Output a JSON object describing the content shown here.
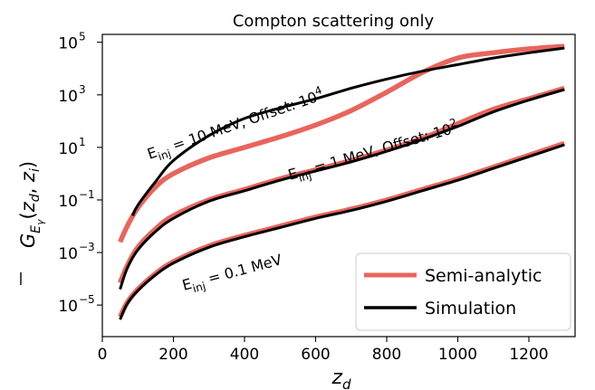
{
  "chart_data": {
    "type": "line",
    "title": "Compton scattering only",
    "xlabel": "z_d",
    "ylabel": "G_Eγ(z_d, z_i)",
    "xlim": [
      0,
      1330
    ],
    "ylim_log10": [
      -6.2,
      5.3
    ],
    "y_scale": "log",
    "x_ticks": [
      0,
      200,
      400,
      600,
      800,
      1000,
      1200
    ],
    "x_tick_labels": [
      "0",
      "200",
      "400",
      "600",
      "800",
      "1000",
      "1200"
    ],
    "y_ticks_log10": [
      -5,
      -3,
      -1,
      1,
      3,
      5
    ],
    "y_tick_labels": [
      "10^-5",
      "10^-3",
      "10^-1",
      "10^1",
      "10^3",
      "10^5"
    ],
    "grid": false,
    "legend_position": "bottom-right",
    "legend": [
      {
        "label": "Semi-analytic",
        "color": "#e8655d"
      },
      {
        "label": "Simulation",
        "color": "#000000"
      }
    ],
    "annotations": [
      {
        "base": "E",
        "sub": "inj",
        "rest": " = 10 MeV, Offset: 10",
        "sup": "4"
      },
      {
        "base": "E",
        "sub": "inj",
        "rest": " = 1 MeV, Offset: 10",
        "sup": "2"
      },
      {
        "base": "E",
        "sub": "inj",
        "rest": " = 0.1 MeV",
        "sup": ""
      }
    ],
    "series": [
      {
        "group": "10 MeV",
        "kind": "Semi-analytic",
        "color": "#e8655d",
        "x": [
          50,
          70,
          100,
          150,
          200,
          300,
          400,
          500,
          600,
          700,
          800,
          900,
          1000,
          1100,
          1200,
          1300
        ],
        "log10y": [
          -2.6,
          -2.0,
          -1.3,
          -0.5,
          0.0,
          0.6,
          1.0,
          1.4,
          1.85,
          2.4,
          3.1,
          3.85,
          4.4,
          4.6,
          4.75,
          4.85
        ]
      },
      {
        "group": "10 MeV",
        "kind": "Simulation",
        "color": "#000000",
        "x": [
          85,
          100,
          150,
          200,
          300,
          400,
          500,
          600,
          700,
          800,
          900,
          1000,
          1100,
          1200,
          1300
        ],
        "log10y": [
          -1.6,
          -1.2,
          -0.3,
          0.5,
          1.45,
          2.1,
          2.5,
          2.85,
          3.25,
          3.6,
          3.9,
          4.15,
          4.4,
          4.6,
          4.78
        ]
      },
      {
        "group": "1 MeV",
        "kind": "Semi-analytic",
        "color": "#e8655d",
        "x": [
          50,
          70,
          100,
          150,
          200,
          300,
          400,
          500,
          600,
          700,
          800,
          900,
          1000,
          1100,
          1200,
          1300
        ],
        "log10y": [
          -4.15,
          -3.5,
          -2.8,
          -2.1,
          -1.6,
          -1.0,
          -0.6,
          -0.2,
          0.15,
          0.5,
          0.9,
          1.35,
          1.9,
          2.45,
          2.85,
          3.25
        ]
      },
      {
        "group": "1 MeV",
        "kind": "Simulation",
        "color": "#000000",
        "x": [
          50,
          70,
          100,
          150,
          200,
          300,
          400,
          500,
          600,
          700,
          800,
          900,
          1000,
          1100,
          1200,
          1300
        ],
        "log10y": [
          -4.4,
          -3.6,
          -2.9,
          -2.2,
          -1.7,
          -1.05,
          -0.65,
          -0.25,
          0.1,
          0.45,
          0.85,
          1.3,
          1.8,
          2.35,
          2.8,
          3.2
        ]
      },
      {
        "group": "0.1 MeV",
        "kind": "Semi-analytic",
        "color": "#e8655d",
        "x": [
          50,
          70,
          100,
          150,
          200,
          300,
          400,
          500,
          600,
          700,
          800,
          900,
          1000,
          1100,
          1200,
          1300
        ],
        "log10y": [
          -5.45,
          -4.9,
          -4.4,
          -3.8,
          -3.35,
          -2.75,
          -2.35,
          -2.0,
          -1.65,
          -1.35,
          -1.0,
          -0.6,
          -0.2,
          0.25,
          0.7,
          1.15
        ]
      },
      {
        "group": "0.1 MeV",
        "kind": "Simulation",
        "color": "#000000",
        "x": [
          50,
          70,
          100,
          150,
          200,
          300,
          400,
          500,
          600,
          700,
          800,
          900,
          1000,
          1100,
          1200,
          1300
        ],
        "log10y": [
          -5.55,
          -4.95,
          -4.45,
          -3.85,
          -3.4,
          -2.8,
          -2.4,
          -2.05,
          -1.7,
          -1.4,
          -1.05,
          -0.65,
          -0.25,
          0.2,
          0.65,
          1.1
        ]
      }
    ]
  }
}
